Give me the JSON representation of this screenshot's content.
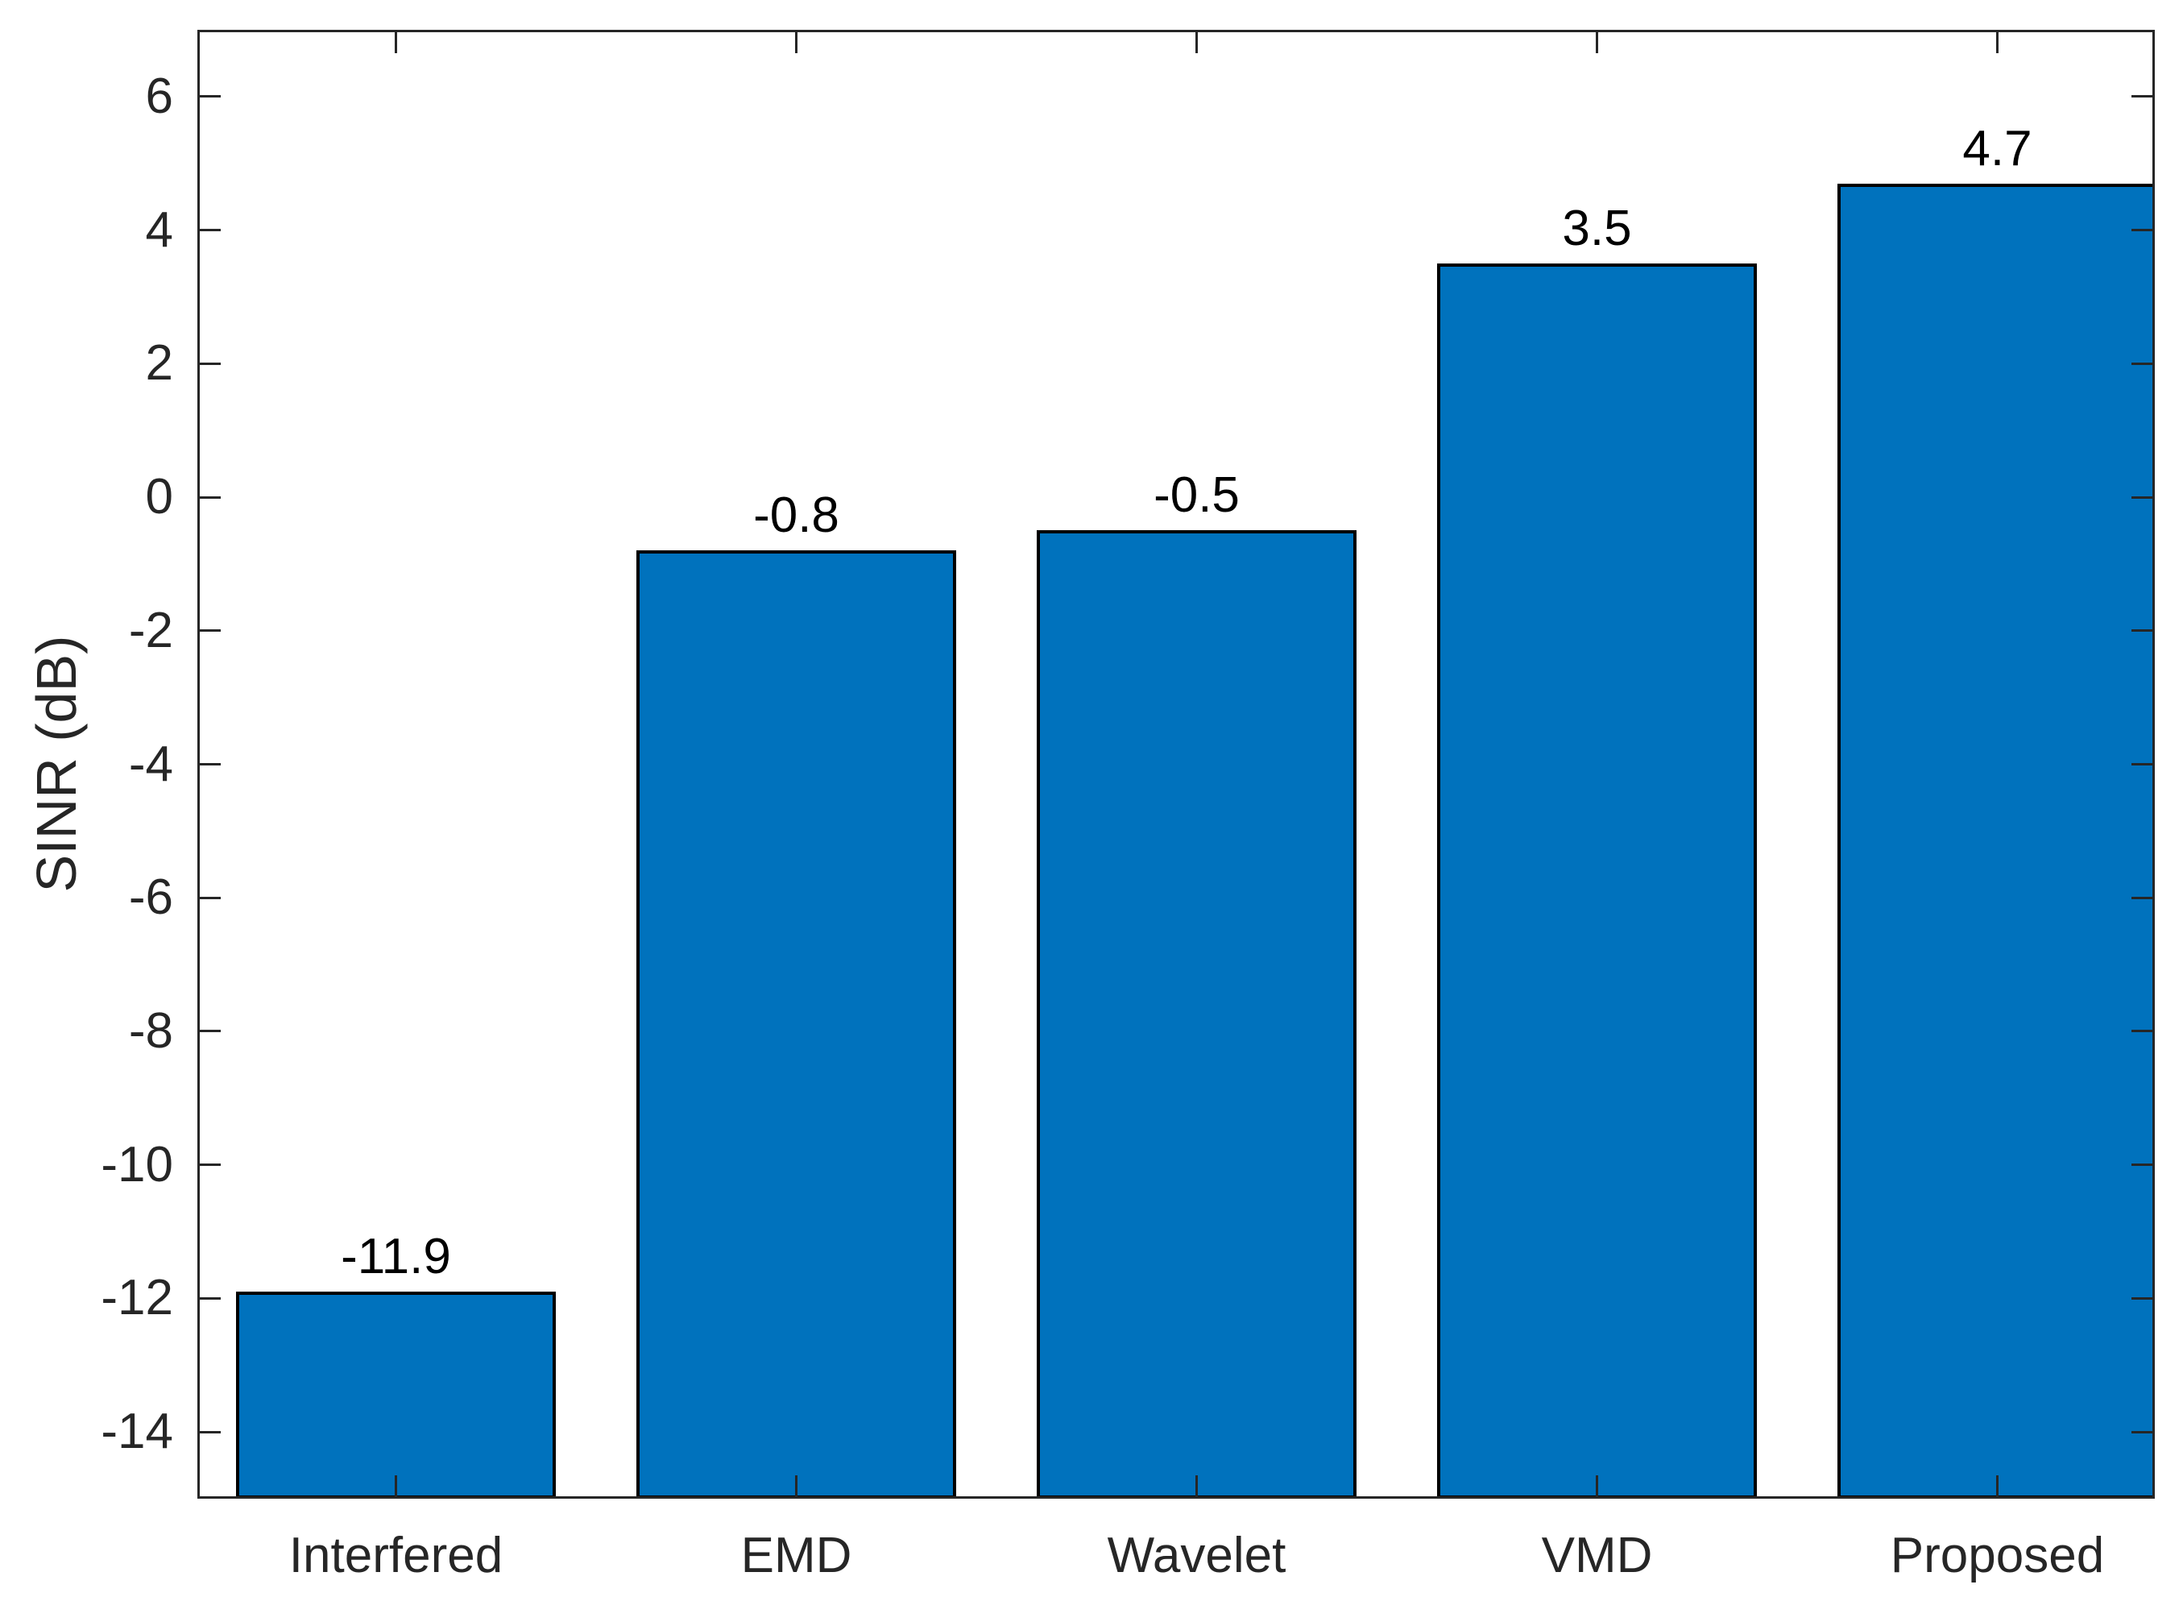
{
  "figure": {
    "background": "#ffffff"
  },
  "chart_data": {
    "type": "bar",
    "title": "",
    "xlabel": "",
    "ylabel": "SINR (dB)",
    "categories": [
      "Interfered",
      "EMD",
      "Wavelet",
      "VMD",
      "Proposed"
    ],
    "values": [
      -11.9,
      -0.8,
      -0.5,
      3.5,
      4.7
    ],
    "value_labels": [
      "-11.9",
      "-0.8",
      "-0.5",
      "3.5",
      "4.7"
    ],
    "ylim": [
      -15,
      7
    ],
    "yticks": [
      -14,
      -12,
      -10,
      -8,
      -6,
      -4,
      -2,
      0,
      2,
      4,
      6
    ],
    "ytick_labels": [
      "-14",
      "-12",
      "-10",
      "-8",
      "-6",
      "-4",
      "-2",
      "0",
      "2",
      "4",
      "6"
    ],
    "grid": false,
    "legend": null,
    "baseline": "axis-bottom",
    "bar_color": "#0072BD",
    "bar_edge_color": "#000000",
    "axis_color": "#262626",
    "tick_direction": "in",
    "box": true
  }
}
